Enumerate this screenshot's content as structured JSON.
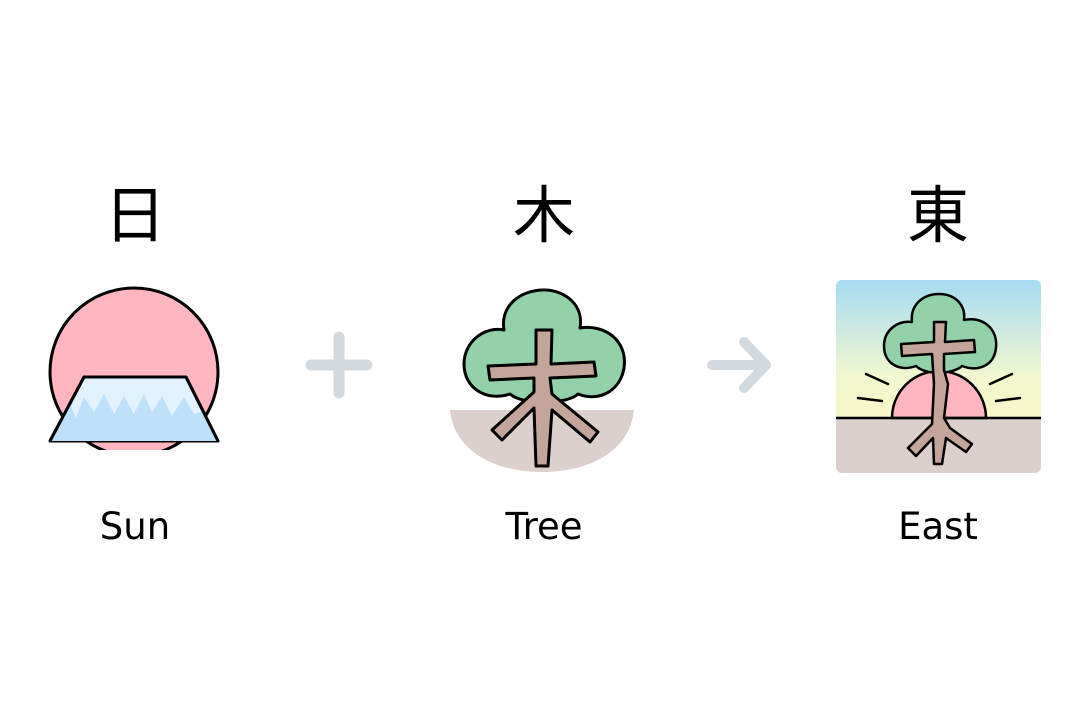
{
  "items": [
    {
      "kanji": "日",
      "label": "Sun",
      "icon": "sun-over-mountain-icon"
    },
    {
      "kanji": "木",
      "label": "Tree",
      "icon": "tree-icon"
    },
    {
      "kanji": "東",
      "label": "East",
      "icon": "sun-behind-tree-icon"
    }
  ],
  "operators": [
    {
      "symbol": "+",
      "icon": "plus-icon"
    },
    {
      "symbol": "→",
      "icon": "arrow-right-icon"
    }
  ],
  "colors": {
    "sun": "#ffb6c1",
    "tree_leaves": "#92d1a9",
    "trunk": "#c4a59b",
    "ground": "#dbd0cd",
    "mountain": "#e3f2ff",
    "sky_top": "#a6dcf3",
    "sky_bottom": "#f2f7cf",
    "operator": "#d3dadf"
  }
}
